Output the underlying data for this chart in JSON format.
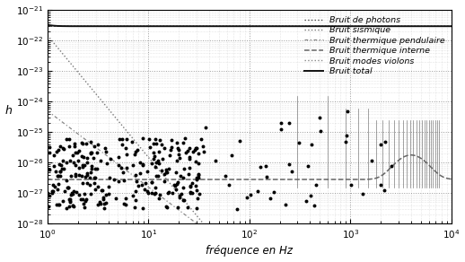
{
  "xlim": [
    1,
    10000
  ],
  "ylim_low": -28,
  "ylim_high": -21,
  "xlabel": "fréquence en Hz",
  "ylabel": "h",
  "background_color": "#ffffff",
  "legend_labels": [
    "Bruit de photons",
    "Bruit sismique",
    "Bruit thermique pendulaire",
    "Bruit thermique interne",
    "Bruit modes violons",
    "Bruit total"
  ]
}
